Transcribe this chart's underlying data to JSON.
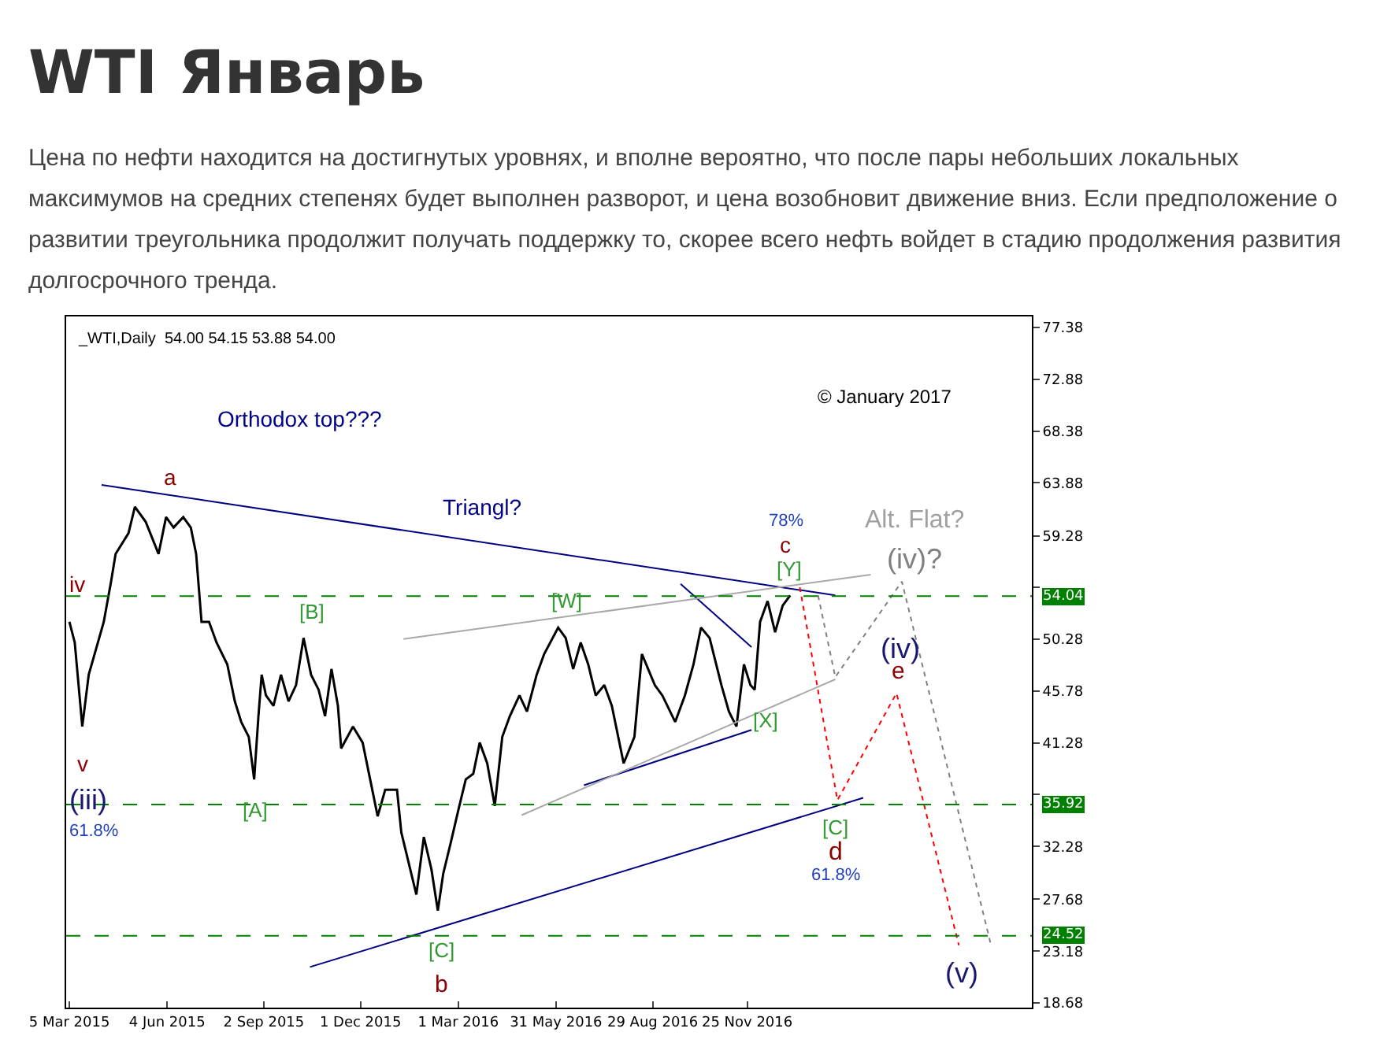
{
  "chart_data": {
    "type": "line",
    "title": "WTI Январь",
    "subtitle": "Цена по нефти находится на достигнутых уровнях, и вполне вероятно, что после пары небольших локальных максимумов на средних степенях будет выполнен разворот, и цена возобновит движение вниз. Если предположение о развитии треугольника продолжит получать поддержку то, скорее всего нефть войдет в стадию продолжения развития долгосрочного тренда.",
    "x": [
      "2015-03-05",
      "2015-03-10",
      "2015-03-17",
      "2015-03-23",
      "2015-03-30",
      "2015-04-06",
      "2015-04-13",
      "2015-04-17",
      "2015-04-29",
      "2015-05-05",
      "2015-05-15",
      "2015-05-27",
      "2015-06-03",
      "2015-06-10",
      "2015-06-19",
      "2015-06-26",
      "2015-07-01",
      "2015-07-06",
      "2015-07-13",
      "2015-07-20",
      "2015-07-30",
      "2015-08-06",
      "2015-08-12",
      "2015-08-19",
      "2015-08-24",
      "2015-08-28",
      "2015-08-31",
      "2015-09-04",
      "2015-09-11",
      "2015-09-18",
      "2015-09-25",
      "2015-10-02",
      "2015-10-09",
      "2015-10-16",
      "2015-10-23",
      "2015-10-29",
      "2015-11-04",
      "2015-11-10",
      "2015-11-13",
      "2015-11-24",
      "2015-12-03",
      "2015-12-10",
      "2015-12-17",
      "2015-12-24",
      "2016-01-04",
      "2016-01-08",
      "2016-01-15",
      "2016-01-22",
      "2016-01-29",
      "2016-02-05",
      "2016-02-11",
      "2016-02-16",
      "2016-02-23",
      "2016-03-01",
      "2016-03-08",
      "2016-03-15",
      "2016-03-21",
      "2016-03-28",
      "2016-04-04",
      "2016-04-11",
      "2016-04-18",
      "2016-04-27",
      "2016-05-04",
      "2016-05-13",
      "2016-05-20",
      "2016-06-02",
      "2016-06-09",
      "2016-06-16",
      "2016-06-23",
      "2016-06-30",
      "2016-07-07",
      "2016-07-15",
      "2016-07-22",
      "2016-08-02",
      "2016-08-12",
      "2016-08-19",
      "2016-08-31",
      "2016-09-07",
      "2016-09-19",
      "2016-09-28",
      "2016-10-06",
      "2016-10-13",
      "2016-10-21",
      "2016-11-01",
      "2016-11-08",
      "2016-11-15",
      "2016-11-22",
      "2016-11-28",
      "2016-12-02",
      "2016-12-07",
      "2016-12-14",
      "2016-12-21",
      "2016-12-28",
      "2017-01-04"
    ],
    "series": [
      {
        "color": "#000000",
        "values": [
          51.8,
          50.0,
          42.7,
          47.2,
          49.5,
          51.8,
          55.4,
          57.7,
          59.5,
          61.8,
          60.5,
          57.7,
          60.9,
          60.0,
          60.9,
          60.0,
          57.7,
          51.8,
          51.8,
          50.0,
          48.1,
          44.9,
          43.1,
          41.8,
          38.1,
          43.6,
          47.2,
          45.4,
          44.5,
          47.2,
          44.9,
          46.3,
          50.4,
          47.2,
          45.9,
          43.6,
          47.7,
          44.5,
          40.8,
          42.7,
          41.3,
          38.1,
          34.9,
          37.2,
          37.2,
          33.5,
          30.8,
          28.1,
          33.1,
          30.3,
          26.7,
          29.9,
          32.6,
          35.4,
          38.1,
          38.6,
          41.3,
          39.5,
          35.8,
          41.8,
          43.6,
          45.4,
          44.0,
          47.2,
          49.0,
          51.3,
          50.4,
          47.7,
          50.0,
          48.1,
          45.4,
          46.3,
          44.5,
          39.5,
          41.8,
          49.0,
          46.3,
          45.4,
          43.1,
          45.4,
          48.1,
          51.3,
          50.4,
          46.3,
          44.0,
          42.7,
          48.1,
          46.3,
          45.9,
          51.8,
          53.6,
          50.9,
          53.2,
          54.1
        ]
      },
      {
        "color": "#000080",
        "x": [
          "2015-04-04",
          "2017-02-15"
        ],
        "values": [
          63.7,
          54.1
        ]
      },
      {
        "color": "#000080",
        "x": [
          "2015-10-15",
          "2017-03-13"
        ],
        "values": [
          21.8,
          36.5
        ]
      },
      {
        "color": "#000080",
        "x": [
          "2016-06-26",
          "2016-11-29"
        ],
        "values": [
          37.6,
          42.4
        ]
      },
      {
        "color": "#000080",
        "x": [
          "2016-09-24",
          "2016-11-29"
        ],
        "values": [
          55.1,
          49.6
        ]
      },
      {
        "color": "#a9a9a9",
        "x": [
          "2016-01-10",
          "2017-03-20"
        ],
        "values": [
          50.3,
          55.9
        ]
      },
      {
        "color": "#a9a9a9",
        "x": [
          "2016-04-29",
          "2017-02-15"
        ],
        "values": [
          35.0,
          46.8
        ]
      },
      {
        "color": "#ff0000",
        "line_style": "dotted",
        "x": [
          "2017-01-13",
          "2017-02-17",
          "2017-04-13",
          "2017-06-10"
        ],
        "values": [
          54.8,
          36.3,
          45.6,
          23.7
        ]
      },
      {
        "color": "#808080",
        "line_style": "dotted",
        "x": [
          "2017-01-30",
          "2017-02-15",
          "2017-04-18",
          "2017-07-10"
        ],
        "values": [
          54.1,
          47.0,
          55.3,
          23.7
        ]
      }
    ],
    "xlim": [
      "2015-03-02",
      "2017-08-17"
    ],
    "xticks": [
      {
        "value": "2015-03-05",
        "label": "5 Mar 2015"
      },
      {
        "value": "2015-06-04",
        "label": "4 Jun 2015"
      },
      {
        "value": "2015-09-02",
        "label": "2 Sep 2015"
      },
      {
        "value": "2015-12-01",
        "label": "1 Dec 2015"
      },
      {
        "value": "2016-03-01",
        "label": "1 Mar 2016"
      },
      {
        "value": "2016-05-31",
        "label": "31 May 2016"
      },
      {
        "value": "2016-08-29",
        "label": "29 Aug 2016"
      },
      {
        "value": "2016-11-25",
        "label": "25 Nov 2016"
      }
    ],
    "ylim": [
      18.27,
      78.34
    ],
    "yticks": [
      77.38,
      72.88,
      68.38,
      63.88,
      59.28,
      {
        "value": 54.78,
        "label": null
      },
      50.28,
      45.78,
      41.28,
      {
        "value": 36.78,
        "label": null
      },
      32.28,
      27.68,
      23.18,
      18.68
    ],
    "ref_lines": [
      {
        "axis": "y",
        "value": 54.04,
        "label": "54.04",
        "color": "#008000",
        "line_style": "dashed"
      },
      {
        "axis": "y",
        "value": 35.92,
        "label": "35.92",
        "color": "#008000",
        "line_style": "dashed"
      },
      {
        "axis": "y",
        "value": 24.52,
        "label": "24.52",
        "color": "#008000",
        "line_style": "dashed"
      }
    ],
    "grid": false,
    "line_style": "solid",
    "annotations": [
      "_WTI,Daily  54.00 54.15 53.88 54.00",
      "© January 2017",
      "Orthodox top???",
      "Triangl?",
      "a",
      "iv",
      "v",
      "(iii)",
      "61.8%",
      "[A]",
      "[B]",
      "[C]",
      "b",
      "[W]",
      "78%",
      "c",
      "[Y]",
      "Alt. Flat?",
      "(iv)?",
      "(iv)",
      "e",
      "[X]",
      "[C]",
      "d",
      "61.8%",
      "(v)"
    ]
  }
}
